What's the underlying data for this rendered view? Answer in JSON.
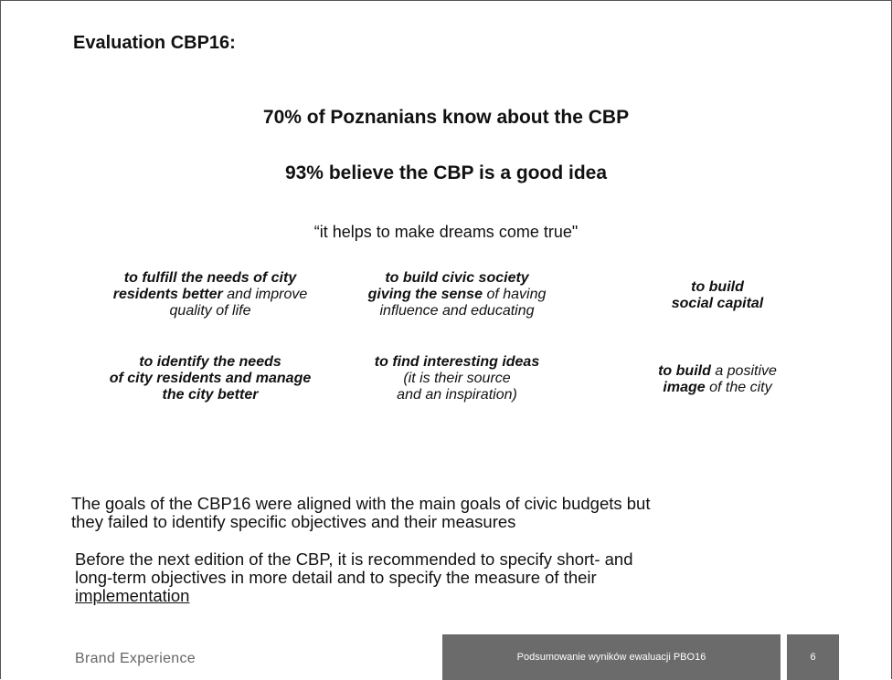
{
  "title": "Evaluation CBP16:",
  "headlines": [
    "70% of Poznanians know about the CBP",
    "93% believe the CBP is a good idea"
  ],
  "quote": "“it helps to make dreams come true\"",
  "goals": [
    [
      "to fulfill the needs of city",
      "residents better",
      "and improve",
      "quality of life"
    ],
    [
      "to build civic society",
      "giving the sense",
      "of having",
      "influence and educating"
    ],
    [
      "to build",
      "social capital"
    ],
    [
      "to identify the needs",
      "of city residents and manage",
      "the city better"
    ],
    [
      "to find interesting ideas",
      "(it is their source",
      "and an inspiration)"
    ],
    [
      "to build",
      "a positive",
      "image",
      "of the city"
    ]
  ],
  "paragraphs": [
    [
      "The goals of the CBP16 were aligned with the main goals of civic budgets but",
      "they failed to identify specific objectives and their measures"
    ],
    [
      "Before the next edition of the CBP, it is recommended to specify short- and",
      "long-term objectives in more detail and to specify the measure of their",
      "implementation"
    ]
  ],
  "footer": {
    "brand": "Brand Experience",
    "subtitle": "Podsumowanie wyników ewaluacji  PBO16",
    "page": "6"
  }
}
